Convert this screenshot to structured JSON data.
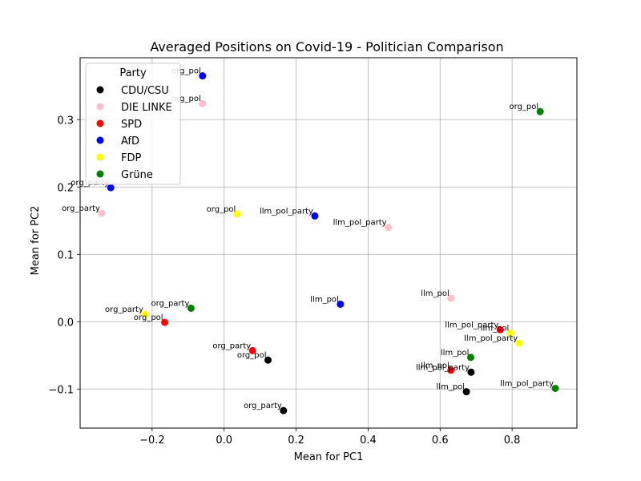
{
  "chart_data": {
    "type": "scatter",
    "title": "Averaged Positions on Covid-19 - Politician Comparison",
    "xlabel": "Mean for PC1",
    "ylabel": "Mean for PC2",
    "xlim": [
      -0.4,
      0.98
    ],
    "ylim": [
      -0.158,
      0.392
    ],
    "xticks": [
      -0.2,
      0.0,
      0.2,
      0.4,
      0.6,
      0.8
    ],
    "xtick_labels": [
      "−0.2",
      "0.0",
      "0.2",
      "0.4",
      "0.6",
      "0.8"
    ],
    "yticks": [
      -0.1,
      0.0,
      0.1,
      0.2,
      0.3
    ],
    "ytick_labels": [
      "−0.1",
      "0.0",
      "0.1",
      "0.2",
      "0.3"
    ],
    "grid": true,
    "legend": {
      "title": "Party",
      "placement": "top-left",
      "entries": [
        {
          "name": "CDU/CSU",
          "color": "#000000"
        },
        {
          "name": "DIE LINKE",
          "color": "#ffc0cb"
        },
        {
          "name": "SPD",
          "color": "#ff0000"
        },
        {
          "name": "AfD",
          "color": "#0000ff"
        },
        {
          "name": "FDP",
          "color": "#ffff00"
        },
        {
          "name": "Grüne",
          "color": "#008000"
        }
      ]
    },
    "points": [
      {
        "party": "CDU/CSU",
        "x": 0.122,
        "y": -0.057,
        "label": "org_pol"
      },
      {
        "party": "CDU/CSU",
        "x": 0.165,
        "y": -0.132,
        "label": "org_party"
      },
      {
        "party": "CDU/CSU",
        "x": 0.686,
        "y": -0.075,
        "label": "llm_pol_party"
      },
      {
        "party": "CDU/CSU",
        "x": 0.673,
        "y": -0.104,
        "label": "llm_pol"
      },
      {
        "party": "DIE LINKE",
        "x": -0.06,
        "y": 0.324,
        "label": "org_pol"
      },
      {
        "party": "DIE LINKE",
        "x": -0.34,
        "y": 0.161,
        "label": "org_party"
      },
      {
        "party": "DIE LINKE",
        "x": 0.456,
        "y": 0.14,
        "label": "llm_pol_party"
      },
      {
        "party": "DIE LINKE",
        "x": 0.63,
        "y": 0.035,
        "label": "llm_pol"
      },
      {
        "party": "SPD",
        "x": -0.165,
        "y": -0.001,
        "label": "org_pol"
      },
      {
        "party": "SPD",
        "x": 0.079,
        "y": -0.043,
        "label": "org_party"
      },
      {
        "party": "SPD",
        "x": 0.767,
        "y": -0.012,
        "label": "llm_pol_party"
      },
      {
        "party": "SPD",
        "x": 0.63,
        "y": -0.072,
        "label": "llm_pol"
      },
      {
        "party": "AfD",
        "x": -0.06,
        "y": 0.365,
        "label": "org_pol"
      },
      {
        "party": "AfD",
        "x": -0.315,
        "y": 0.199,
        "label": "org_party"
      },
      {
        "party": "AfD",
        "x": 0.252,
        "y": 0.157,
        "label": "llm_pol_party"
      },
      {
        "party": "AfD",
        "x": 0.323,
        "y": 0.026,
        "label": "llm_pol"
      },
      {
        "party": "FDP",
        "x": 0.037,
        "y": 0.16,
        "label": "org_pol"
      },
      {
        "party": "FDP",
        "x": -0.22,
        "y": 0.011,
        "label": "org_party"
      },
      {
        "party": "FDP",
        "x": 0.82,
        "y": -0.032,
        "label": "llm_pol_party"
      },
      {
        "party": "FDP",
        "x": 0.796,
        "y": -0.017,
        "label": "llm_pol"
      },
      {
        "party": "Grüne",
        "x": 0.878,
        "y": 0.312,
        "label": "org_pol"
      },
      {
        "party": "Grüne",
        "x": -0.092,
        "y": 0.02,
        "label": "org_party"
      },
      {
        "party": "Grüne",
        "x": 0.92,
        "y": -0.099,
        "label": "llm_pol_party"
      },
      {
        "party": "Grüne",
        "x": 0.685,
        "y": -0.053,
        "label": "llm_pol"
      }
    ]
  }
}
